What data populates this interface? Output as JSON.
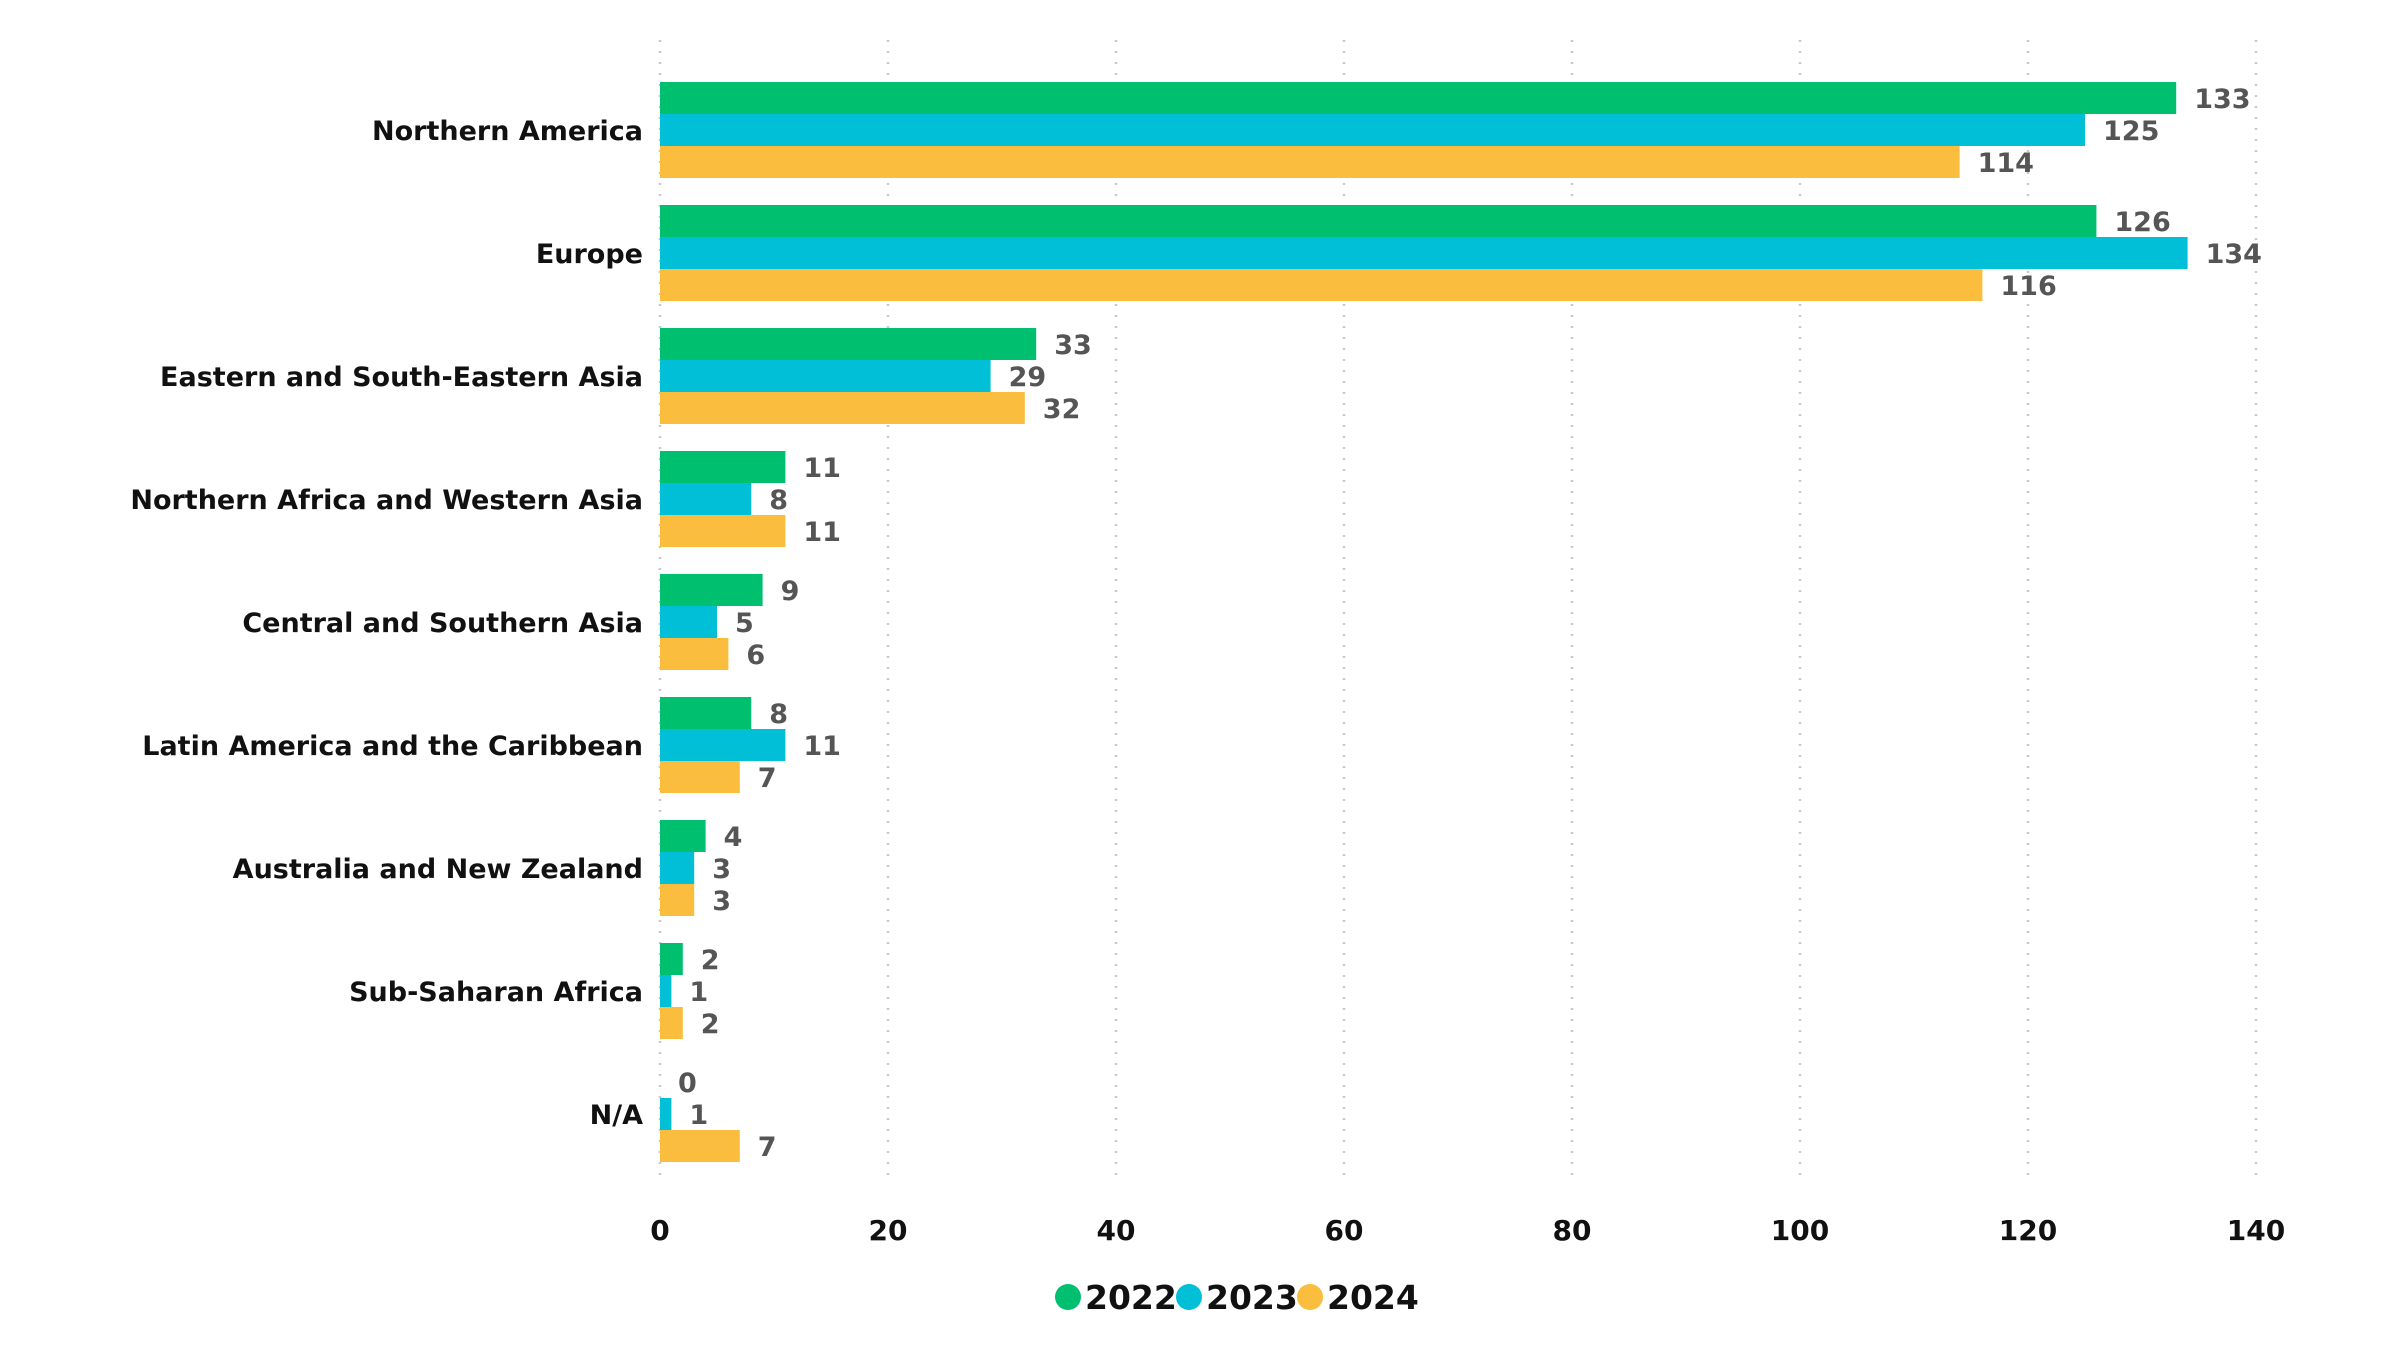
{
  "chart_data": {
    "type": "bar",
    "orientation": "horizontal",
    "categories": [
      "Northern America",
      "Europe",
      "Eastern and South-Eastern Asia",
      "Northern Africa and Western Asia",
      "Central and Southern Asia",
      "Latin America and the Caribbean",
      "Australia and New Zealand",
      "Sub-Saharan Africa",
      "N/A"
    ],
    "series": [
      {
        "name": "2022",
        "color": "#00bf6f",
        "values": [
          133,
          126,
          33,
          11,
          9,
          8,
          4,
          2,
          0
        ]
      },
      {
        "name": "2023",
        "color": "#00bfd6",
        "values": [
          125,
          134,
          29,
          8,
          5,
          11,
          3,
          1,
          1
        ]
      },
      {
        "name": "2024",
        "color": "#fbbd3e",
        "values": [
          114,
          116,
          32,
          11,
          6,
          7,
          3,
          2,
          7
        ]
      }
    ],
    "xlim": [
      0,
      140
    ],
    "xticks": [
      0,
      20,
      40,
      60,
      80,
      100,
      120,
      140
    ],
    "grid": true,
    "legend_position": "bottom-center",
    "title": "",
    "xlabel": "",
    "ylabel": ""
  }
}
